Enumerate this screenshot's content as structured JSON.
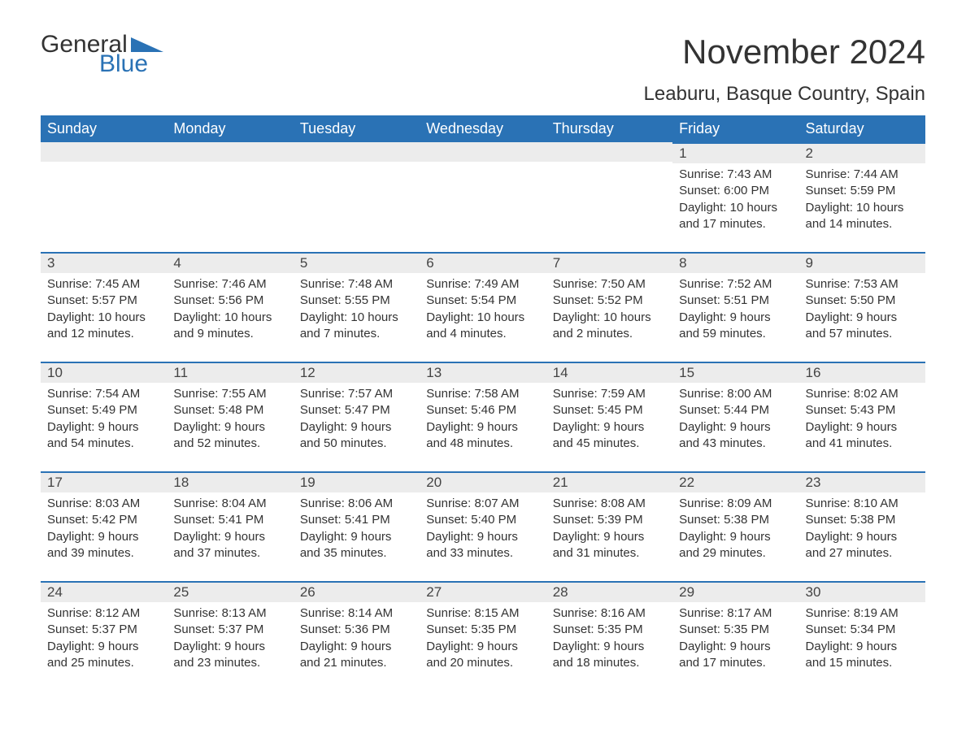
{
  "logo": {
    "text_general": "General",
    "text_blue": "Blue",
    "triangle_color": "#2a72b5"
  },
  "title": "November 2024",
  "location": "Leaburu, Basque Country, Spain",
  "colors": {
    "header_bg": "#2a72b5",
    "header_text": "#ffffff",
    "daynum_bg": "#ececec",
    "daynum_border": "#2a72b5",
    "text": "#333333",
    "background": "#ffffff"
  },
  "day_headers": [
    "Sunday",
    "Monday",
    "Tuesday",
    "Wednesday",
    "Thursday",
    "Friday",
    "Saturday"
  ],
  "weeks": [
    [
      {
        "day": "",
        "sunrise": "",
        "sunset": "",
        "daylight1": "",
        "daylight2": ""
      },
      {
        "day": "",
        "sunrise": "",
        "sunset": "",
        "daylight1": "",
        "daylight2": ""
      },
      {
        "day": "",
        "sunrise": "",
        "sunset": "",
        "daylight1": "",
        "daylight2": ""
      },
      {
        "day": "",
        "sunrise": "",
        "sunset": "",
        "daylight1": "",
        "daylight2": ""
      },
      {
        "day": "",
        "sunrise": "",
        "sunset": "",
        "daylight1": "",
        "daylight2": ""
      },
      {
        "day": "1",
        "sunrise": "Sunrise: 7:43 AM",
        "sunset": "Sunset: 6:00 PM",
        "daylight1": "Daylight: 10 hours",
        "daylight2": "and 17 minutes."
      },
      {
        "day": "2",
        "sunrise": "Sunrise: 7:44 AM",
        "sunset": "Sunset: 5:59 PM",
        "daylight1": "Daylight: 10 hours",
        "daylight2": "and 14 minutes."
      }
    ],
    [
      {
        "day": "3",
        "sunrise": "Sunrise: 7:45 AM",
        "sunset": "Sunset: 5:57 PM",
        "daylight1": "Daylight: 10 hours",
        "daylight2": "and 12 minutes."
      },
      {
        "day": "4",
        "sunrise": "Sunrise: 7:46 AM",
        "sunset": "Sunset: 5:56 PM",
        "daylight1": "Daylight: 10 hours",
        "daylight2": "and 9 minutes."
      },
      {
        "day": "5",
        "sunrise": "Sunrise: 7:48 AM",
        "sunset": "Sunset: 5:55 PM",
        "daylight1": "Daylight: 10 hours",
        "daylight2": "and 7 minutes."
      },
      {
        "day": "6",
        "sunrise": "Sunrise: 7:49 AM",
        "sunset": "Sunset: 5:54 PM",
        "daylight1": "Daylight: 10 hours",
        "daylight2": "and 4 minutes."
      },
      {
        "day": "7",
        "sunrise": "Sunrise: 7:50 AM",
        "sunset": "Sunset: 5:52 PM",
        "daylight1": "Daylight: 10 hours",
        "daylight2": "and 2 minutes."
      },
      {
        "day": "8",
        "sunrise": "Sunrise: 7:52 AM",
        "sunset": "Sunset: 5:51 PM",
        "daylight1": "Daylight: 9 hours",
        "daylight2": "and 59 minutes."
      },
      {
        "day": "9",
        "sunrise": "Sunrise: 7:53 AM",
        "sunset": "Sunset: 5:50 PM",
        "daylight1": "Daylight: 9 hours",
        "daylight2": "and 57 minutes."
      }
    ],
    [
      {
        "day": "10",
        "sunrise": "Sunrise: 7:54 AM",
        "sunset": "Sunset: 5:49 PM",
        "daylight1": "Daylight: 9 hours",
        "daylight2": "and 54 minutes."
      },
      {
        "day": "11",
        "sunrise": "Sunrise: 7:55 AM",
        "sunset": "Sunset: 5:48 PM",
        "daylight1": "Daylight: 9 hours",
        "daylight2": "and 52 minutes."
      },
      {
        "day": "12",
        "sunrise": "Sunrise: 7:57 AM",
        "sunset": "Sunset: 5:47 PM",
        "daylight1": "Daylight: 9 hours",
        "daylight2": "and 50 minutes."
      },
      {
        "day": "13",
        "sunrise": "Sunrise: 7:58 AM",
        "sunset": "Sunset: 5:46 PM",
        "daylight1": "Daylight: 9 hours",
        "daylight2": "and 48 minutes."
      },
      {
        "day": "14",
        "sunrise": "Sunrise: 7:59 AM",
        "sunset": "Sunset: 5:45 PM",
        "daylight1": "Daylight: 9 hours",
        "daylight2": "and 45 minutes."
      },
      {
        "day": "15",
        "sunrise": "Sunrise: 8:00 AM",
        "sunset": "Sunset: 5:44 PM",
        "daylight1": "Daylight: 9 hours",
        "daylight2": "and 43 minutes."
      },
      {
        "day": "16",
        "sunrise": "Sunrise: 8:02 AM",
        "sunset": "Sunset: 5:43 PM",
        "daylight1": "Daylight: 9 hours",
        "daylight2": "and 41 minutes."
      }
    ],
    [
      {
        "day": "17",
        "sunrise": "Sunrise: 8:03 AM",
        "sunset": "Sunset: 5:42 PM",
        "daylight1": "Daylight: 9 hours",
        "daylight2": "and 39 minutes."
      },
      {
        "day": "18",
        "sunrise": "Sunrise: 8:04 AM",
        "sunset": "Sunset: 5:41 PM",
        "daylight1": "Daylight: 9 hours",
        "daylight2": "and 37 minutes."
      },
      {
        "day": "19",
        "sunrise": "Sunrise: 8:06 AM",
        "sunset": "Sunset: 5:41 PM",
        "daylight1": "Daylight: 9 hours",
        "daylight2": "and 35 minutes."
      },
      {
        "day": "20",
        "sunrise": "Sunrise: 8:07 AM",
        "sunset": "Sunset: 5:40 PM",
        "daylight1": "Daylight: 9 hours",
        "daylight2": "and 33 minutes."
      },
      {
        "day": "21",
        "sunrise": "Sunrise: 8:08 AM",
        "sunset": "Sunset: 5:39 PM",
        "daylight1": "Daylight: 9 hours",
        "daylight2": "and 31 minutes."
      },
      {
        "day": "22",
        "sunrise": "Sunrise: 8:09 AM",
        "sunset": "Sunset: 5:38 PM",
        "daylight1": "Daylight: 9 hours",
        "daylight2": "and 29 minutes."
      },
      {
        "day": "23",
        "sunrise": "Sunrise: 8:10 AM",
        "sunset": "Sunset: 5:38 PM",
        "daylight1": "Daylight: 9 hours",
        "daylight2": "and 27 minutes."
      }
    ],
    [
      {
        "day": "24",
        "sunrise": "Sunrise: 8:12 AM",
        "sunset": "Sunset: 5:37 PM",
        "daylight1": "Daylight: 9 hours",
        "daylight2": "and 25 minutes."
      },
      {
        "day": "25",
        "sunrise": "Sunrise: 8:13 AM",
        "sunset": "Sunset: 5:37 PM",
        "daylight1": "Daylight: 9 hours",
        "daylight2": "and 23 minutes."
      },
      {
        "day": "26",
        "sunrise": "Sunrise: 8:14 AM",
        "sunset": "Sunset: 5:36 PM",
        "daylight1": "Daylight: 9 hours",
        "daylight2": "and 21 minutes."
      },
      {
        "day": "27",
        "sunrise": "Sunrise: 8:15 AM",
        "sunset": "Sunset: 5:35 PM",
        "daylight1": "Daylight: 9 hours",
        "daylight2": "and 20 minutes."
      },
      {
        "day": "28",
        "sunrise": "Sunrise: 8:16 AM",
        "sunset": "Sunset: 5:35 PM",
        "daylight1": "Daylight: 9 hours",
        "daylight2": "and 18 minutes."
      },
      {
        "day": "29",
        "sunrise": "Sunrise: 8:17 AM",
        "sunset": "Sunset: 5:35 PM",
        "daylight1": "Daylight: 9 hours",
        "daylight2": "and 17 minutes."
      },
      {
        "day": "30",
        "sunrise": "Sunrise: 8:19 AM",
        "sunset": "Sunset: 5:34 PM",
        "daylight1": "Daylight: 9 hours",
        "daylight2": "and 15 minutes."
      }
    ]
  ]
}
